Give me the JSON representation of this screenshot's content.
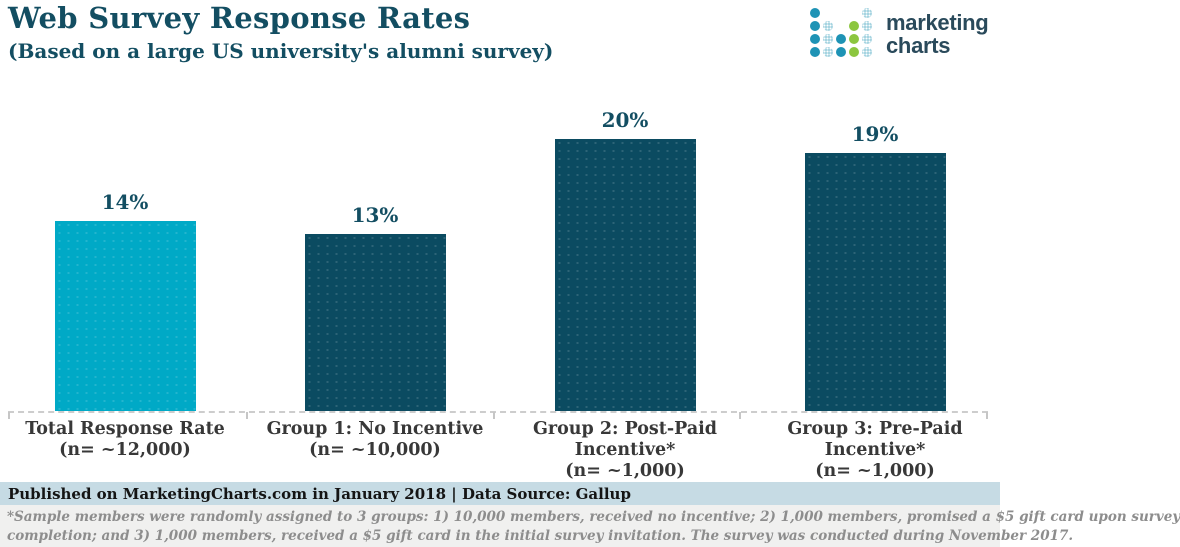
{
  "header": {
    "title": "Web Survey Response Rates",
    "subtitle": "(Based on a large US university's alumni survey)"
  },
  "logo": {
    "text_line1": "marketing",
    "text_line2": "charts",
    "dot_rows": [
      "T...t",
      "Tt.Gt",
      "TtTGt",
      "TtTGt"
    ],
    "dot_colors": {
      "T": "#1E93B5",
      "t": "#9BCFDD",
      "G": "#8CC63F"
    }
  },
  "chart_data": {
    "type": "bar",
    "title": "Web Survey Response Rates",
    "subtitle": "(Based on a large US university's alumni survey)",
    "categories": [
      "Total Response Rate",
      "Group 1: No Incentive",
      "Group 2: Post-Paid Incentive*",
      "Group 3: Pre-Paid Incentive*"
    ],
    "sample_sizes": [
      "(n= ~12,000)",
      "(n= ~10,000)",
      "(n= ~1,000)",
      "(n= ~1,000)"
    ],
    "values": [
      14,
      13,
      20,
      19
    ],
    "value_labels": [
      "14%",
      "13%",
      "20%",
      "19%"
    ],
    "unit": "%",
    "ylim": [
      0,
      30
    ],
    "grid": false,
    "legend": false,
    "bar_colors": [
      "#00A9C6",
      "#0B4B61",
      "#0B4B61",
      "#0B4B61"
    ]
  },
  "colors": {
    "accent_dark_teal": "#134E62",
    "bar_cyan": "#00A9C6",
    "bar_dark": "#0B4B61",
    "footer_band": "#C6DBE4",
    "footnote_bg": "#F0F0EF",
    "baseline": "#CDCDCD"
  },
  "footer": {
    "published": "Published on MarketingCharts.com in January 2018 | Data Source: Gallup"
  },
  "footnote": {
    "lines": [
      "*Sample members were randomly assigned to 3 groups: 1) 10,000 members, received no incentive; 2) 1,000 members, promised a $5 gift card upon survey",
      "completion; and 3) 1,000 members, received a $5 gift card in the initial survey invitation. The survey was conducted during November 2017."
    ]
  }
}
